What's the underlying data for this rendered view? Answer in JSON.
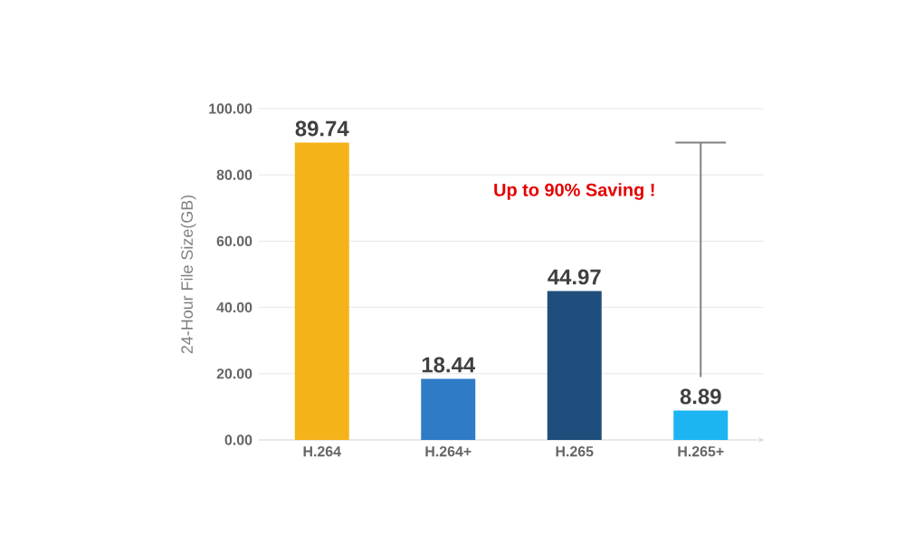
{
  "chart_data": {
    "type": "bar",
    "ylabel": "24-Hour File Size(GB)",
    "categories": [
      "H.264",
      "H.264+",
      "H.265",
      "H.265+"
    ],
    "values": [
      89.74,
      18.44,
      44.97,
      8.89
    ],
    "errors": [
      null,
      null,
      null,
      [
        19,
        89.74
      ]
    ],
    "colors": [
      "#f5b31a",
      "#2f7bc6",
      "#1f4e7c",
      "#1cb4f2"
    ],
    "ylim": [
      0,
      100
    ],
    "yticks": [
      {
        "value": 0,
        "label": "0.00"
      },
      {
        "value": 20,
        "label": "20.00"
      },
      {
        "value": 40,
        "label": "40.00"
      },
      {
        "value": 60,
        "label": "60.00"
      },
      {
        "value": 80,
        "label": "80.00"
      },
      {
        "value": 100,
        "label": "100.00"
      }
    ],
    "grid": "y",
    "data_labels": true,
    "annotations": [
      "Up to 90% Saving !"
    ]
  }
}
